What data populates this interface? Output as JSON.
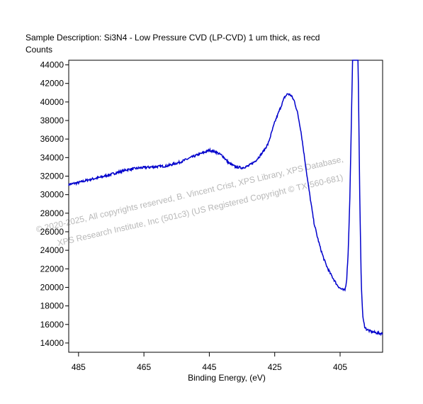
{
  "header": {
    "description": "Sample Description:  Si3N4 - Low Pressure CVD (LP-CVD) 1 um thick, as recd"
  },
  "watermark": {
    "line1": "© 2020-2025,  All copyrights reserved,   B. Vincent Crist,  XPS Library, XPS Database,",
    "line2": "XPS Research Institute, Inc (501c3)   (US Registered Copyright © TX-560-681)"
  },
  "chart_data": {
    "type": "line",
    "title": "",
    "xlabel": "Binding Energy, (eV)",
    "ylabel": "Counts",
    "xlim": [
      488,
      392
    ],
    "ylim": [
      13000,
      44500
    ],
    "x_reversed": true,
    "x_ticks": [
      485,
      465,
      445,
      425,
      405
    ],
    "y_ticks": [
      14000,
      16000,
      18000,
      20000,
      22000,
      24000,
      26000,
      28000,
      30000,
      32000,
      34000,
      36000,
      38000,
      40000,
      42000,
      44000
    ],
    "grid": false,
    "line_color": "#0000cc",
    "series": [
      {
        "x": [
          488,
          485,
          482,
          478,
          474,
          470,
          466,
          462,
          458,
          454,
          450,
          447,
          445,
          443,
          441,
          439,
          437,
          435,
          433,
          431,
          429,
          427,
          425,
          423,
          422,
          421,
          420,
          419,
          418,
          417,
          416,
          415,
          414,
          413,
          412,
          411,
          410,
          409,
          408,
          407,
          406,
          405,
          404,
          403.5,
          403,
          402.5,
          402,
          401.6,
          401.2,
          401,
          400.6,
          400.3,
          399.8,
          399.5,
          399,
          398.5,
          398,
          397.5,
          397,
          396,
          394,
          392
        ],
        "y": [
          31100,
          31300,
          31600,
          31900,
          32300,
          32700,
          32900,
          33000,
          33100,
          33500,
          34100,
          34500,
          34800,
          34600,
          34200,
          33400,
          33000,
          32900,
          33100,
          33600,
          34400,
          35500,
          37800,
          39600,
          40500,
          40900,
          40700,
          40100,
          38800,
          36900,
          34300,
          31700,
          29300,
          27000,
          25500,
          24200,
          23100,
          22200,
          21500,
          20900,
          20300,
          19900,
          19700,
          19700,
          20800,
          24000,
          30000,
          37000,
          44500,
          44500,
          44500,
          44500,
          44500,
          44500,
          30000,
          20000,
          16600,
          15800,
          15500,
          15300,
          15100,
          15000
        ]
      }
    ]
  }
}
